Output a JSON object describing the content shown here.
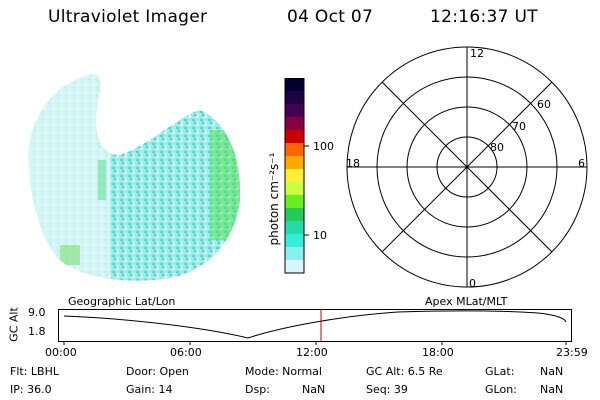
{
  "header": {
    "title": "Ultraviolet Imager",
    "date": "04 Oct 07",
    "time": "12:16:37 UT"
  },
  "colorbar": {
    "label": "photon cm⁻²s⁻¹",
    "ticks": [
      "100",
      "10"
    ],
    "colors": [
      "#000033",
      "#220044",
      "#440055",
      "#880044",
      "#cc0000",
      "#ff6600",
      "#ffaa00",
      "#ffee33",
      "#ccff44",
      "#66ee22",
      "#22cc55",
      "#22ddaa",
      "#33eedd",
      "#88f0f0",
      "#d8f6f8"
    ]
  },
  "polar": {
    "mlt_labels": {
      "top": "12",
      "bottom": "0",
      "left": "18",
      "right": "6"
    },
    "lat_labels": [
      "60",
      "70",
      "80"
    ]
  },
  "timeline": {
    "y_label": "GC Alt",
    "y_ticks": [
      "9.0",
      "1.8"
    ],
    "left_caption": "Geographic Lat/Lon",
    "right_caption": "Apex MLat/MLT",
    "x_ticks": [
      "00:00",
      "06:00",
      "12:00",
      "18:00",
      "23:59"
    ],
    "marker_color": "#cc0000"
  },
  "info": {
    "flt": "Flt: LBHL",
    "ip": "IP: 36.0",
    "door": "Door: Open",
    "gain": "Gain: 14",
    "mode": "Mode: Normal",
    "dsp_label": "Dsp:",
    "dsp_value": "NaN",
    "gc_alt": "GC Alt: 6.5 Re",
    "seq": "Seq: 39",
    "glat_label": "GLat:",
    "glat_value": "NaN",
    "glon_label": "GLon:",
    "glon_value": "NaN"
  },
  "image_colors": {
    "base": "#8ee8e8",
    "speckle_light": "#dff6f8",
    "speckle_dark": "#3bd6c8",
    "bright": "#55e055"
  }
}
